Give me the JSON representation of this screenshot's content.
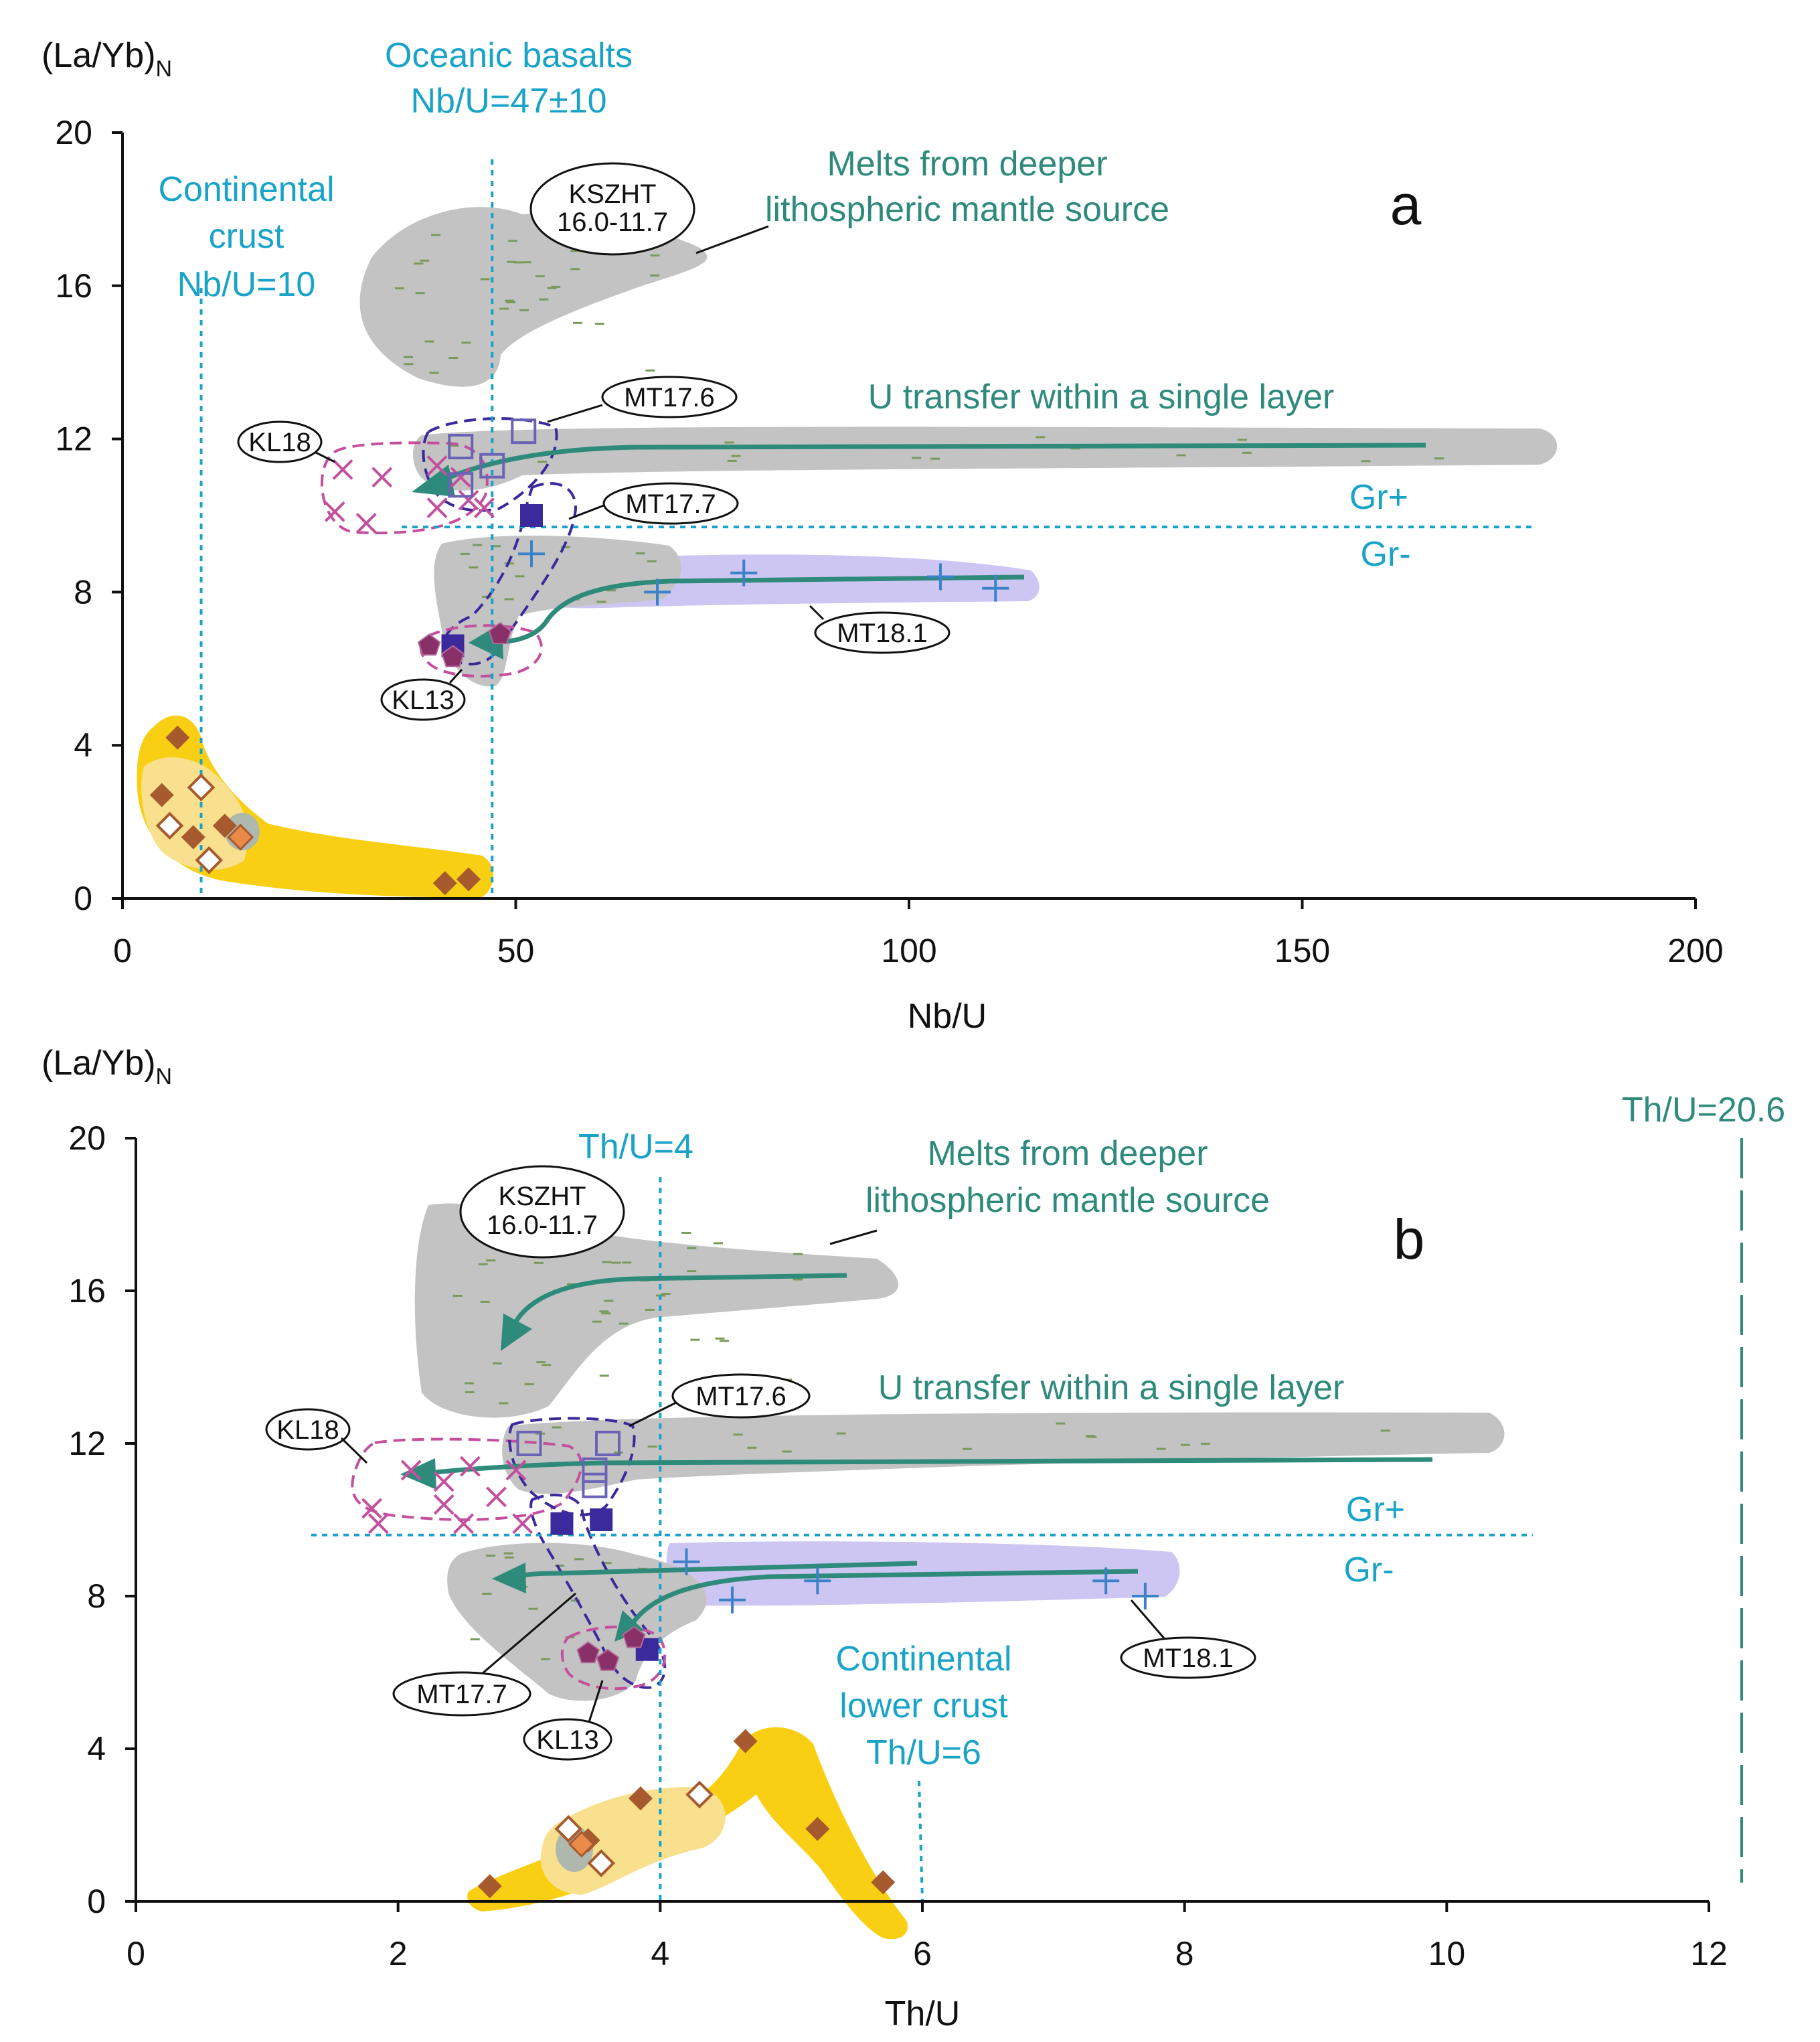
{
  "figure": {
    "colors": {
      "cyan": "#1aa3c9",
      "teal": "#2e8a7a",
      "gray_field": "#c3c3c3",
      "violet_field": "#cdc6f2",
      "yellow_field": "#f9cf14",
      "pale_yellow": "#f8e08e",
      "diamond_fill": "#a65a2e",
      "kl18_cross": "#c4509d",
      "kl13_pentagon": "#8a3068",
      "mt176_square": "#6a63b5",
      "mt177_square": "#3a2a9c",
      "mt181_plus": "#3b82c8"
    }
  },
  "chart_data": [
    {
      "type": "scatter",
      "panel_label": "a",
      "ylabel": "(La/Yb)",
      "ylabel_sub": "N",
      "xlabel": "Nb/U",
      "xlim": [
        0,
        200
      ],
      "ylim": [
        0,
        20
      ],
      "x_ticks": [
        "0",
        "50",
        "100",
        "150",
        "200"
      ],
      "y_ticks": [
        "0",
        "4",
        "8",
        "12",
        "16",
        "20"
      ],
      "reference_lines": [
        {
          "axis": "x",
          "value": 10,
          "label": "Continental crust Nb/U=10"
        },
        {
          "axis": "x",
          "value": 47,
          "label": "Oceanic basalts Nb/U=47±10"
        },
        {
          "axis": "y",
          "value": 9.7,
          "label_above": "Gr+",
          "label_below": "Gr-"
        }
      ],
      "annotations": [
        "Melts from deeper lithospheric mantle source",
        "U transfer within a single layer"
      ],
      "callouts": [
        "KSZHT 16.0-11.7",
        "MT17.6",
        "KL18",
        "MT17.7",
        "MT18.1",
        "KL13"
      ],
      "series": [
        {
          "name": "KL18",
          "marker": "cross",
          "points": [
            [
              28,
              11.2
            ],
            [
              33,
              11.0
            ],
            [
              40,
              11.3
            ],
            [
              43,
              11.0
            ],
            [
              27,
              10.1
            ],
            [
              31,
              9.8
            ],
            [
              40,
              10.2
            ],
            [
              44,
              10.4
            ],
            [
              46,
              10.2
            ]
          ]
        },
        {
          "name": "MT17.6",
          "marker": "open-square",
          "points": [
            [
              43,
              11.8
            ],
            [
              51,
              12.2
            ],
            [
              47,
              11.3
            ],
            [
              43,
              10.8
            ]
          ]
        },
        {
          "name": "MT17.7",
          "marker": "filled-square",
          "points": [
            [
              52,
              10.0
            ],
            [
              42,
              6.6
            ]
          ]
        },
        {
          "name": "MT18.1",
          "marker": "plus",
          "points": [
            [
              52,
              9.0
            ],
            [
              68,
              8.0
            ],
            [
              79,
              8.5
            ],
            [
              104,
              8.4
            ],
            [
              111,
              8.1
            ]
          ]
        },
        {
          "name": "KL13",
          "marker": "pentagon",
          "points": [
            [
              39,
              6.6
            ],
            [
              42,
              6.3
            ],
            [
              48,
              6.9
            ]
          ]
        },
        {
          "name": "Continental crust",
          "marker": "filled-diamond",
          "points": [
            [
              7,
              4.2
            ],
            [
              5,
              2.7
            ],
            [
              9,
              1.6
            ],
            [
              13,
              1.9
            ],
            [
              41,
              0.4
            ],
            [
              44,
              0.5
            ]
          ]
        },
        {
          "name": "Continental crust (open)",
          "marker": "open-diamond",
          "points": [
            [
              10,
              2.9
            ],
            [
              6,
              1.9
            ],
            [
              11,
              1.0
            ]
          ]
        },
        {
          "name": "Continental crust (orange)",
          "marker": "orange-diamond",
          "points": [
            [
              15,
              1.6
            ]
          ]
        }
      ]
    },
    {
      "type": "scatter",
      "panel_label": "b",
      "ylabel": "(La/Yb)",
      "ylabel_sub": "N",
      "xlabel": "Th/U",
      "xlim": [
        0,
        12
      ],
      "ylim": [
        0,
        20
      ],
      "x_ticks": [
        "0",
        "2",
        "4",
        "6",
        "8",
        "10",
        "12"
      ],
      "y_ticks": [
        "0",
        "4",
        "8",
        "12",
        "16",
        "20"
      ],
      "reference_lines": [
        {
          "axis": "x",
          "value": 4,
          "label": "Th/U=4"
        },
        {
          "axis": "x",
          "value": 6,
          "label": "Continental lower crust Th/U=6"
        },
        {
          "axis": "x",
          "value": 12.25,
          "label": "Th/U=20.6"
        },
        {
          "axis": "y",
          "value": 9.6,
          "label_above": "Gr+",
          "label_below": "Gr-"
        }
      ],
      "annotations": [
        "Melts from deeper lithospheric mantle source",
        "U transfer within a single layer"
      ],
      "callouts": [
        "KSZHT 16.0-11.7",
        "MT17.6",
        "KL18",
        "MT17.7",
        "KL13",
        "MT18.1"
      ],
      "series": [
        {
          "name": "KL18",
          "marker": "cross",
          "points": [
            [
              2.1,
              11.3
            ],
            [
              2.35,
              11.0
            ],
            [
              2.55,
              11.4
            ],
            [
              2.9,
              11.3
            ],
            [
              2.75,
              10.6
            ],
            [
              2.35,
              10.4
            ],
            [
              1.8,
              10.3
            ],
            [
              1.85,
              9.9
            ],
            [
              2.5,
              9.9
            ],
            [
              2.95,
              9.9
            ]
          ]
        },
        {
          "name": "MT17.6",
          "marker": "open-square",
          "points": [
            [
              3.0,
              12.0
            ],
            [
              3.6,
              12.0
            ],
            [
              3.5,
              11.3
            ],
            [
              3.5,
              10.9
            ]
          ]
        },
        {
          "name": "MT17.7",
          "marker": "filled-square",
          "points": [
            [
              3.25,
              9.9
            ],
            [
              3.55,
              10.0
            ],
            [
              3.9,
              6.6
            ]
          ]
        },
        {
          "name": "MT18.1",
          "marker": "plus",
          "points": [
            [
              4.2,
              8.9
            ],
            [
              4.55,
              7.9
            ],
            [
              5.2,
              8.4
            ],
            [
              7.4,
              8.4
            ],
            [
              7.7,
              8.0
            ]
          ]
        },
        {
          "name": "KL13",
          "marker": "pentagon",
          "points": [
            [
              3.45,
              6.5
            ],
            [
              3.6,
              6.3
            ],
            [
              3.8,
              6.9
            ]
          ]
        },
        {
          "name": "Continental crust",
          "marker": "filled-diamond",
          "points": [
            [
              2.7,
              0.4
            ],
            [
              3.45,
              1.6
            ],
            [
              3.85,
              2.7
            ],
            [
              4.65,
              4.2
            ],
            [
              5.2,
              1.9
            ],
            [
              5.7,
              0.5
            ]
          ]
        },
        {
          "name": "Continental crust (open)",
          "marker": "open-diamond",
          "points": [
            [
              3.3,
              1.9
            ],
            [
              3.55,
              1.0
            ],
            [
              4.3,
              2.8
            ]
          ]
        },
        {
          "name": "Continental crust (orange)",
          "marker": "orange-diamond",
          "points": [
            [
              3.4,
              1.5
            ]
          ]
        }
      ]
    }
  ]
}
